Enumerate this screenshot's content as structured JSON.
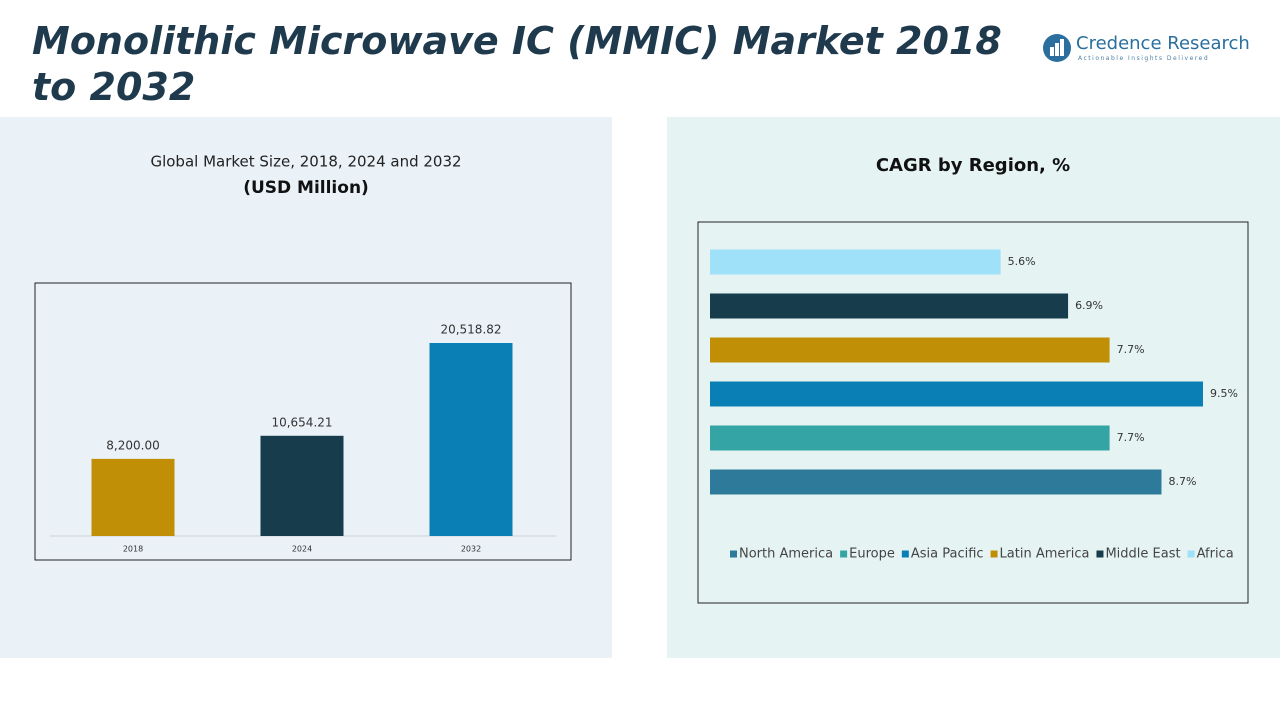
{
  "header": {
    "title": "Monolithic Microwave IC (MMIC) Market 2018 to 2032",
    "logo_name": "Credence Research",
    "logo_tagline": "Actionable Insights Delivered"
  },
  "chart_data": [
    {
      "type": "bar",
      "title": "Global Market Size, 2018, 2024 and 2032",
      "subtitle": "(USD Million)",
      "categories": [
        "2018",
        "2024",
        "2032"
      ],
      "values": [
        8200,
        10654.21,
        20518.82
      ],
      "value_labels": [
        "8,200.00",
        "10,654.21",
        "20,518.82"
      ],
      "colors": [
        "#c08f06",
        "#173c4c",
        "#0a7fb5"
      ]
    },
    {
      "type": "hbar",
      "title": "CAGR by Region, %",
      "legend": "bottom",
      "series": [
        {
          "name": "North America",
          "color": "#2e7a9a",
          "values": [
            8.7
          ],
          "value_labels": [
            "8.7%"
          ]
        },
        {
          "name": "Europe",
          "color": "#34a4a4",
          "values": [
            7.7
          ],
          "value_labels": [
            "7.7%"
          ]
        },
        {
          "name": "Asia Pacific",
          "color": "#0a7fb5",
          "values": [
            9.5
          ],
          "value_labels": [
            "9.5%"
          ]
        },
        {
          "name": "Latin America",
          "color": "#c08f06",
          "values": [
            7.7
          ],
          "value_labels": [
            "7.7%"
          ]
        },
        {
          "name": "Middle East",
          "color": "#173c4c",
          "values": [
            6.9
          ],
          "value_labels": [
            "6.9%"
          ]
        },
        {
          "name": "Africa",
          "color": "#9fe1f8",
          "values": [
            5.6
          ],
          "value_labels": [
            "5.6%"
          ]
        }
      ]
    }
  ]
}
